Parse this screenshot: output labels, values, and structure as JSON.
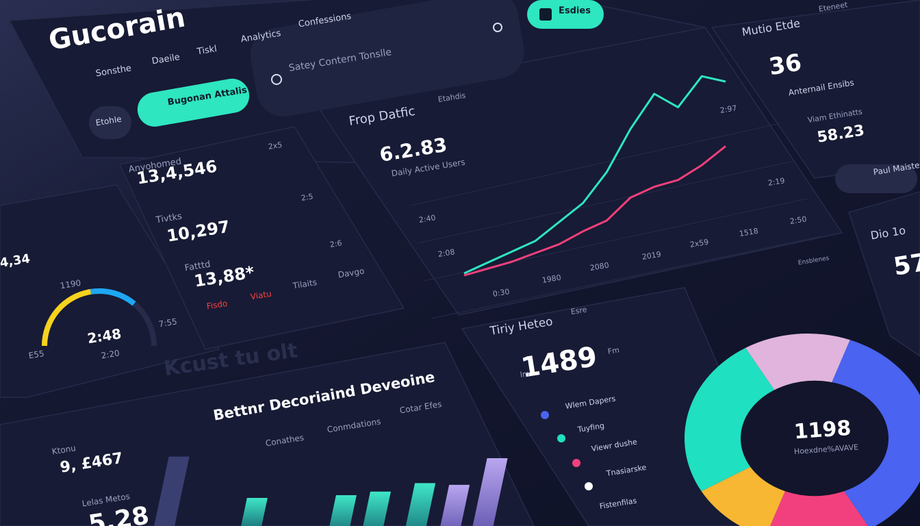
{
  "header": {
    "brand": "Gucorain",
    "nav": [
      "Sonsthe",
      "Daeile",
      "Tiskl",
      "Analytics",
      "Confessions"
    ],
    "search": "Satey Contern Tonslle",
    "button": "Esdies",
    "action": "Bugonan Attalis",
    "pill": "Etohle"
  },
  "stats_card": {
    "items": [
      {
        "label": "Anyohomed",
        "value": "13,4,546"
      },
      {
        "label": "Tivtks",
        "value": "10,297"
      },
      {
        "label": "Fatttd",
        "value": "13,88*"
      }
    ],
    "footer": [
      "Fisdo",
      "Viatu",
      "Tilaits",
      "Davgo"
    ],
    "side": [
      "2x5",
      "2:5",
      "2:6"
    ]
  },
  "gauge": {
    "title": "4,34",
    "top": "1190",
    "center": "2:48",
    "right": "7:55",
    "left": "E55",
    "bottom": "2:20",
    "value": 72,
    "max": 100
  },
  "traffic": {
    "title": "Frop Datfic",
    "tag": "Etahdis",
    "value": "6.2.83",
    "subtitle": "Daily Active Users",
    "y_labels": [
      "2:40",
      "2:08"
    ],
    "x_labels": [
      "0:30",
      "1980",
      "2080",
      "2019",
      "2x59",
      "1518"
    ],
    "right_labels": [
      "2:97",
      "2:19",
      "2:50"
    ],
    "toggle": "Ensblenes",
    "series": [
      {
        "color": "#2ee6c0",
        "values": [
          2,
          6,
          10,
          14,
          22,
          30,
          44,
          64,
          80,
          72,
          86,
          82
        ]
      },
      {
        "color": "#f0407a",
        "values": [
          1,
          3,
          5,
          8,
          11,
          16,
          20,
          30,
          34,
          36,
          42,
          50
        ]
      }
    ],
    "ylim": [
      0,
      100
    ]
  },
  "metrics": {
    "title": "Mutio Etde",
    "tag": "Eteneet",
    "value": "36",
    "label": "Anternail Ensibs",
    "sub_label": "Viam Ethinatts",
    "sub_value": "58.23",
    "button": "Paul Maiste"
  },
  "side_card": {
    "title": "Dio 1o",
    "value": "57"
  },
  "heat": {
    "title": "Tiriy Heteo",
    "tag": "Esre",
    "value": "1489",
    "prefix": "lm",
    "suffix": "Fm",
    "legend": [
      "Wlem Dapers",
      "Tuyfing",
      "Viewr dushe",
      "Tnasiarske",
      "Fistenfilas"
    ]
  },
  "donut": {
    "center": "1198",
    "label": "Hoexdne%AVAVE",
    "values": [
      36,
      14,
      11,
      25,
      14
    ],
    "colors": [
      "#4a63f0",
      "#f2407e",
      "#f7b733",
      "#1fe0c0",
      "#e0b4dc"
    ]
  },
  "bars": {
    "title": "Bettnr Decoriaind Deveoine",
    "tabs": [
      "Conathes",
      "Conmdations",
      "Cotar Efes"
    ],
    "faded": "Kcust tu olt",
    "label1": "Ktonu",
    "value1": "9, £467",
    "label2": "Lelas Metos",
    "value2": "5.28",
    "values": [
      78,
      36,
      44,
      50,
      62,
      62,
      94,
      80
    ],
    "ylim": [
      0,
      100
    ]
  }
}
